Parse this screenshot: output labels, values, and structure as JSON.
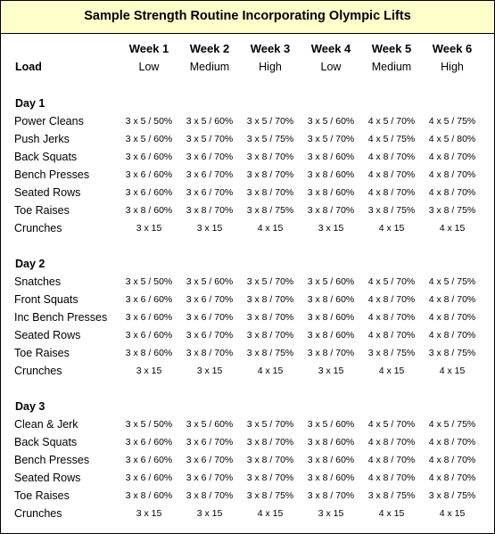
{
  "title": "Sample Strength Routine Incorporating Olympic Lifts",
  "load_label": "Load",
  "weeks": [
    {
      "label": "Week 1",
      "load": "Low"
    },
    {
      "label": "Week 2",
      "load": "Medium"
    },
    {
      "label": "Week 3",
      "load": "High"
    },
    {
      "label": "Week 4",
      "load": "Low"
    },
    {
      "label": "Week 5",
      "load": "Medium"
    },
    {
      "label": "Week 6",
      "load": "High"
    }
  ],
  "days": [
    {
      "label": "Day 1",
      "exercises": [
        {
          "name": "Power Cleans",
          "values": [
            "3 x 5 / 50%",
            "3 x 5 / 60%",
            "3 x 5 / 70%",
            "3 x 5 / 60%",
            "4 x 5 / 70%",
            "4 x 5 / 75%"
          ]
        },
        {
          "name": "Push Jerks",
          "values": [
            "3 x 5 / 60%",
            "3 x 5 / 70%",
            "3 x 5 / 75%",
            "3 x 5 / 70%",
            "4 x 5 / 75%",
            "4 x 5 / 80%"
          ]
        },
        {
          "name": "Back Squats",
          "values": [
            "3 x 6 / 60%",
            "3 x 6 / 70%",
            "3 x 8 / 70%",
            "3 x 8 / 60%",
            "4 x 8 / 70%",
            "4 x 8 / 70%"
          ]
        },
        {
          "name": "Bench Presses",
          "values": [
            "3 x 6 / 60%",
            "3 x 6 / 70%",
            "3 x 8 / 70%",
            "3 x 8 / 60%",
            "4 x 8 / 70%",
            "4 x 8 / 70%"
          ]
        },
        {
          "name": "Seated Rows",
          "values": [
            "3 x 6 / 60%",
            "3 x 6 / 70%",
            "3 x 8 / 70%",
            "3 x 8 / 60%",
            "4 x 8 / 70%",
            "4 x 8 / 70%"
          ]
        },
        {
          "name": "Toe Raises",
          "values": [
            "3 x 8 / 60%",
            "3 x 8 / 70%",
            "3 x 8 / 75%",
            "3 x 8 / 70%",
            "3 x 8 / 75%",
            "3 x 8 / 75%"
          ]
        },
        {
          "name": "Crunches",
          "values": [
            "3 x 15",
            "3 x 15",
            "4 x 15",
            "3 x 15",
            "4 x 15",
            "4 x 15"
          ]
        }
      ]
    },
    {
      "label": "Day 2",
      "exercises": [
        {
          "name": "Snatches",
          "values": [
            "3 x 5 / 50%",
            "3 x 5 / 60%",
            "3 x 5 / 70%",
            "3 x 5 / 60%",
            "4 x 5 / 70%",
            "4 x 5 / 75%"
          ]
        },
        {
          "name": "Front Squats",
          "values": [
            "3 x 6 / 60%",
            "3 x 6 / 70%",
            "3 x 8 / 70%",
            "3 x 8 / 60%",
            "4 x 8 / 70%",
            "4 x 8 / 70%"
          ]
        },
        {
          "name": "Inc Bench Presses",
          "values": [
            "3 x 6 / 60%",
            "3 x 6 / 70%",
            "3 x 8 / 70%",
            "3 x 8 / 60%",
            "4 x 8 / 70%",
            "4 x 8 / 70%"
          ]
        },
        {
          "name": "Seated Rows",
          "values": [
            "3 x 6 / 60%",
            "3 x 6 / 70%",
            "3 x 8 / 70%",
            "3 x 8 / 60%",
            "4 x 8 / 70%",
            "4 x 8 / 70%"
          ]
        },
        {
          "name": "Toe Raises",
          "values": [
            "3 x 8 / 60%",
            "3 x 8 / 70%",
            "3 x 8 / 75%",
            "3 x 8 / 70%",
            "3 x 8 / 75%",
            "3 x 8 / 75%"
          ]
        },
        {
          "name": "Crunches",
          "values": [
            "3 x 15",
            "3 x 15",
            "4 x 15",
            "3 x 15",
            "4 x 15",
            "4 x 15"
          ]
        }
      ]
    },
    {
      "label": "Day 3",
      "exercises": [
        {
          "name": "Clean & Jerk",
          "values": [
            "3 x 5 / 50%",
            "3 x 5 / 60%",
            "3 x 5 / 70%",
            "3 x 5 / 60%",
            "4 x 5 / 70%",
            "4 x 5 / 75%"
          ]
        },
        {
          "name": "Back Squats",
          "values": [
            "3 x 6 / 60%",
            "3 x 6 / 70%",
            "3 x 8 / 70%",
            "3 x 8 / 60%",
            "4 x 8 / 70%",
            "4 x 8 / 70%"
          ]
        },
        {
          "name": "Bench Presses",
          "values": [
            "3 x 6 / 60%",
            "3 x 6 / 70%",
            "3 x 8 / 70%",
            "3 x 8 / 60%",
            "4 x 8 / 70%",
            "4 x 8 / 70%"
          ]
        },
        {
          "name": "Seated Rows",
          "values": [
            "3 x 6 / 60%",
            "3 x 6 / 70%",
            "3 x 8 / 70%",
            "3 x 8 / 60%",
            "4 x 8 / 70%",
            "4 x 8 / 70%"
          ]
        },
        {
          "name": "Toe Raises",
          "values": [
            "3 x 8 / 60%",
            "3 x 8 / 70%",
            "3 x 8 / 75%",
            "3 x 8 / 70%",
            "3 x 8 / 75%",
            "3 x 8 / 75%"
          ]
        },
        {
          "name": "Crunches",
          "values": [
            "3 x 15",
            "3 x 15",
            "4 x 15",
            "3 x 15",
            "4 x 15",
            "4 x 15"
          ]
        }
      ]
    }
  ]
}
